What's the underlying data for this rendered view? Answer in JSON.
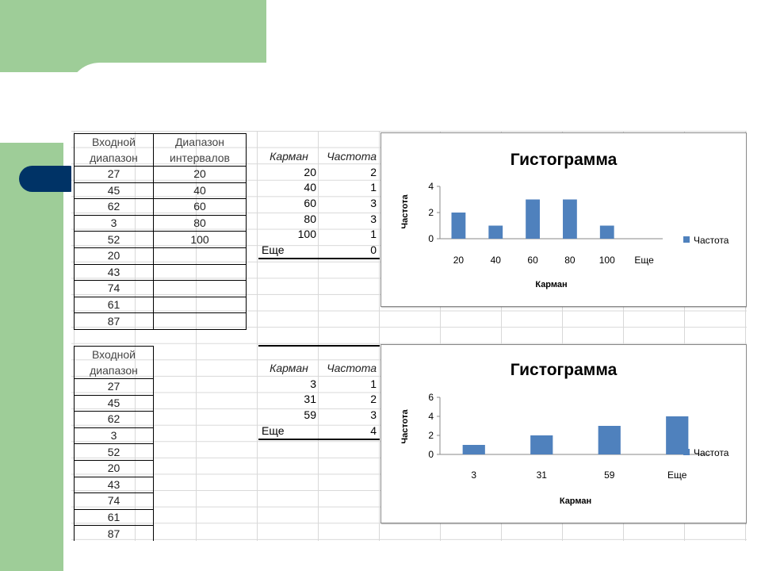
{
  "colors": {
    "accent_green": "#9ecd98",
    "pill_navy": "#003366",
    "bar_blue": "#4f81bd"
  },
  "top_block": {
    "input_header": [
      "Входной",
      "диапазон"
    ],
    "intervals_header": [
      "Диапазон",
      "интервалов"
    ],
    "rows": [
      {
        "input": "27",
        "interval": "20"
      },
      {
        "input": "45",
        "interval": "40"
      },
      {
        "input": "62",
        "interval": "60"
      },
      {
        "input": "3",
        "interval": "80"
      },
      {
        "input": "52",
        "interval": "100"
      },
      {
        "input": "20",
        "interval": ""
      },
      {
        "input": "43",
        "interval": ""
      },
      {
        "input": "74",
        "interval": ""
      },
      {
        "input": "61",
        "interval": ""
      },
      {
        "input": "87",
        "interval": ""
      }
    ],
    "bins_header": {
      "bin": "Карман",
      "freq": "Частота"
    },
    "bins": [
      {
        "bin": "20",
        "freq": "2"
      },
      {
        "bin": "40",
        "freq": "1"
      },
      {
        "bin": "60",
        "freq": "3"
      },
      {
        "bin": "80",
        "freq": "3"
      },
      {
        "bin": "100",
        "freq": "1"
      },
      {
        "bin": "Еще",
        "freq": "0"
      }
    ]
  },
  "bottom_block": {
    "input_header": [
      "Входной",
      "диапазон"
    ],
    "rows": [
      "27",
      "45",
      "62",
      "3",
      "52",
      "20",
      "43",
      "74",
      "61",
      "87"
    ],
    "bins_header": {
      "bin": "Карман",
      "freq": "Частота"
    },
    "bins": [
      {
        "bin": "3",
        "freq": "1"
      },
      {
        "bin": "31",
        "freq": "2"
      },
      {
        "bin": "59",
        "freq": "3"
      },
      {
        "bin": "Еще",
        "freq": "4"
      }
    ]
  },
  "chart_data": [
    {
      "type": "bar",
      "title": "Гистограмма",
      "xlabel": "Карман",
      "ylabel": "Частота",
      "categories": [
        "20",
        "40",
        "60",
        "80",
        "100",
        "Еще"
      ],
      "series": [
        {
          "name": "Частота",
          "values": [
            2,
            1,
            3,
            3,
            1,
            0
          ]
        }
      ],
      "ylim": [
        0,
        4
      ],
      "yticks": [
        "0",
        "2",
        "4"
      ],
      "legend": "right",
      "grid": false
    },
    {
      "type": "bar",
      "title": "Гистограмма",
      "xlabel": "Карман",
      "ylabel": "Частота",
      "categories": [
        "3",
        "31",
        "59",
        "Еще"
      ],
      "series": [
        {
          "name": "Частота",
          "values": [
            1,
            2,
            3,
            4
          ]
        }
      ],
      "ylim": [
        0,
        6
      ],
      "yticks": [
        "0",
        "2",
        "4",
        "6"
      ],
      "legend": "right",
      "grid": false
    }
  ]
}
